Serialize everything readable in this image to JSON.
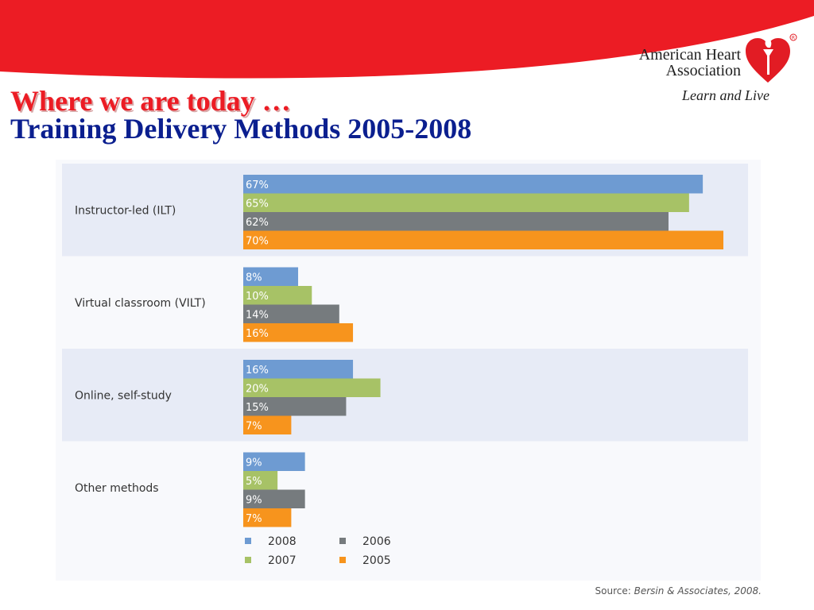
{
  "header": {
    "title": "Where we are today …",
    "subtitle": "Training Delivery Methods 2005-2008"
  },
  "logo": {
    "name_line1": "American Heart",
    "name_line2": "Association",
    "tagline": "Learn and Live"
  },
  "source": {
    "prefix": "Source:",
    "name": "Bersin & Associates, 2008."
  },
  "colors": {
    "banner": "#ec1c24",
    "title": "#ec1c24",
    "subtitle": "#0b1f8f",
    "band": "#e7ebf6"
  },
  "chart_data": {
    "type": "bar",
    "orientation": "horizontal",
    "categories": [
      "Instructor-led (ILT)",
      "Virtual classroom (VILT)",
      "Online, self-study",
      "Other methods"
    ],
    "series": [
      {
        "name": "2008",
        "color": "#6e9bd2",
        "values": [
          67,
          8,
          16,
          9
        ]
      },
      {
        "name": "2007",
        "color": "#a7c266",
        "values": [
          65,
          10,
          20,
          5
        ]
      },
      {
        "name": "2006",
        "color": "#767b7e",
        "values": [
          62,
          14,
          15,
          9
        ]
      },
      {
        "name": "2005",
        "color": "#f7941d",
        "values": [
          70,
          16,
          7,
          7
        ]
      }
    ],
    "value_suffix": "%",
    "xlim": [
      0,
      70
    ],
    "legend": "bottom-left",
    "grid": false
  }
}
